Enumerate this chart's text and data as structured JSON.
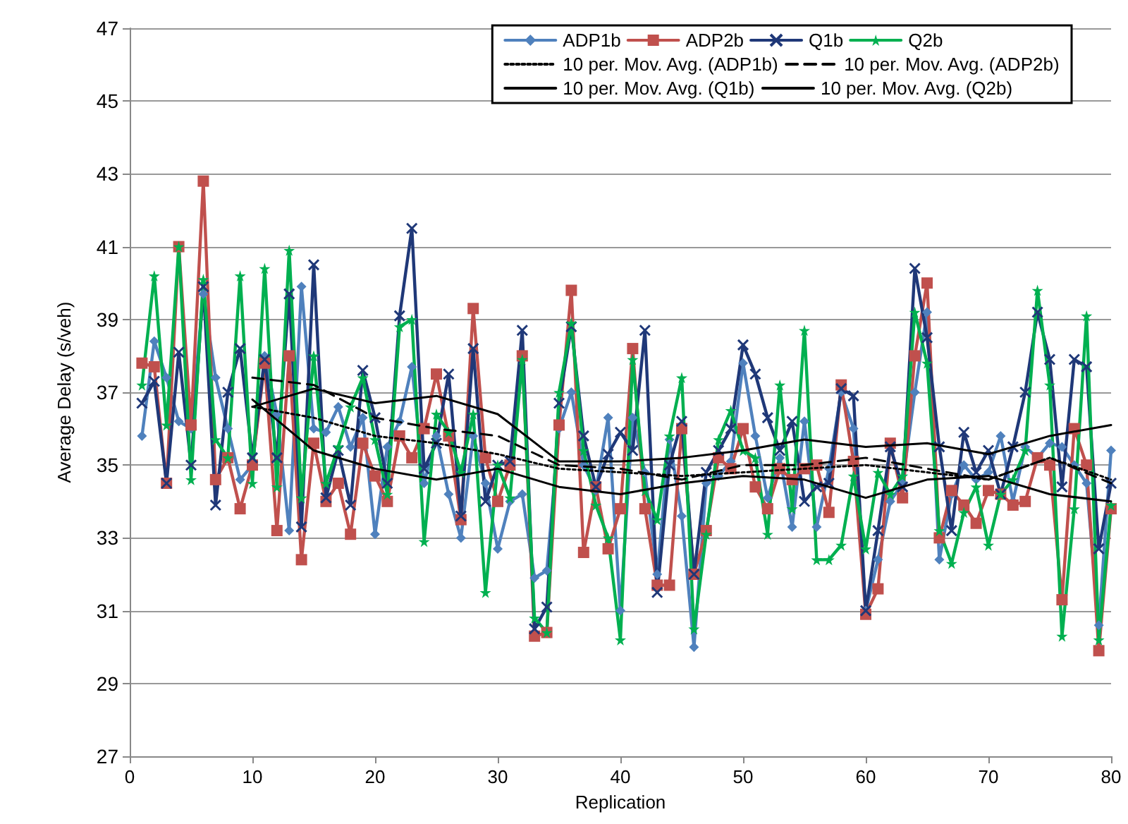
{
  "chart_data": {
    "type": "line",
    "xlabel": "Replication",
    "ylabel": "Average Delay (s/veh)",
    "xlim": [
      0,
      80
    ],
    "xticks": [
      0,
      10,
      20,
      30,
      40,
      50,
      60,
      70,
      80
    ],
    "ylim": [
      27,
      47
    ],
    "yticks": [
      27,
      29,
      31,
      33,
      35,
      37,
      39,
      41,
      43,
      45,
      47
    ],
    "grid": "y",
    "legend": "top right",
    "x": [
      1,
      2,
      3,
      4,
      5,
      6,
      7,
      8,
      9,
      10,
      11,
      12,
      13,
      14,
      15,
      16,
      17,
      18,
      19,
      20,
      21,
      22,
      23,
      24,
      25,
      26,
      27,
      28,
      29,
      30,
      31,
      32,
      33,
      34,
      35,
      36,
      37,
      38,
      39,
      40,
      41,
      42,
      43,
      44,
      45,
      46,
      47,
      48,
      49,
      50,
      51,
      52,
      53,
      54,
      55,
      56,
      57,
      58,
      59,
      60,
      61,
      62,
      63,
      64,
      65,
      66,
      67,
      68,
      69,
      70,
      71,
      72,
      73,
      74,
      75,
      76,
      77,
      78,
      79,
      80
    ],
    "series": [
      {
        "name": "ADP1b",
        "color": "#4f81bd",
        "marker": "diamond",
        "values": [
          35.8,
          38.4,
          37.4,
          36.2,
          36.0,
          39.7,
          37.4,
          36.0,
          34.6,
          35.0,
          38.0,
          36.4,
          33.2,
          39.9,
          36.0,
          35.9,
          36.6,
          35.5,
          36.3,
          33.1,
          35.5,
          36.2,
          37.7,
          34.5,
          35.8,
          34.2,
          33.0,
          35.8,
          34.5,
          32.7,
          34.0,
          34.2,
          31.9,
          32.1,
          36.0,
          37.0,
          35.0,
          34.3,
          36.3,
          31.0,
          36.3,
          34.8,
          32.0,
          35.7,
          33.6,
          30.0,
          34.5,
          34.7,
          35.1,
          37.8,
          35.8,
          34.1,
          35.2,
          33.3,
          36.2,
          33.3,
          34.9,
          37.0,
          36.0,
          31.0,
          32.4,
          34.0,
          34.5,
          37.0,
          39.2,
          32.4,
          34.2,
          35.0,
          34.6,
          34.8,
          35.8,
          34.0,
          35.5,
          35.2,
          35.6,
          35.5,
          35.0,
          34.5,
          30.6,
          35.4
        ]
      },
      {
        "name": "ADP2b",
        "color": "#c0504d",
        "marker": "square",
        "values": [
          37.8,
          37.7,
          34.5,
          41.0,
          36.1,
          42.8,
          34.6,
          35.2,
          33.8,
          35.0,
          37.8,
          33.2,
          38.0,
          32.4,
          35.6,
          34.0,
          34.5,
          33.1,
          35.6,
          34.7,
          34.0,
          35.8,
          35.2,
          36.0,
          37.5,
          35.8,
          33.5,
          39.3,
          35.2,
          34.0,
          35.0,
          38.0,
          30.3,
          30.4,
          36.1,
          39.8,
          32.6,
          34.4,
          32.7,
          33.8,
          38.2,
          33.8,
          31.7,
          31.7,
          36.0,
          32.0,
          33.2,
          35.2,
          34.9,
          36.0,
          34.4,
          33.8,
          34.9,
          34.6,
          34.9,
          35.0,
          33.7,
          37.2,
          35.1,
          30.9,
          31.6,
          35.6,
          34.1,
          38.0,
          40.0,
          33.0,
          34.3,
          33.9,
          33.4,
          34.3,
          34.2,
          33.9,
          34.0,
          35.2,
          35.0,
          31.3,
          36.0,
          35.0,
          29.9,
          33.8
        ]
      },
      {
        "name": "Q1b",
        "color": "#1f3878",
        "marker": "cross",
        "values": [
          36.7,
          37.3,
          34.5,
          38.1,
          35.0,
          39.9,
          33.9,
          37.0,
          38.2,
          35.2,
          37.9,
          35.2,
          39.7,
          33.3,
          40.5,
          34.1,
          35.4,
          33.9,
          37.6,
          36.3,
          34.5,
          39.1,
          41.5,
          34.9,
          35.6,
          37.5,
          33.6,
          38.2,
          34.0,
          35.0,
          35.1,
          38.7,
          30.5,
          31.1,
          36.7,
          38.8,
          35.8,
          34.4,
          35.3,
          35.9,
          35.4,
          38.7,
          31.5,
          35.0,
          36.2,
          32.0,
          34.8,
          35.4,
          36.0,
          38.3,
          37.5,
          36.3,
          35.4,
          36.2,
          34.0,
          34.4,
          34.5,
          37.1,
          36.9,
          31.0,
          33.2,
          35.5,
          34.4,
          40.4,
          38.5,
          35.5,
          33.2,
          35.9,
          34.8,
          35.4,
          34.2,
          35.5,
          37.0,
          39.2,
          37.9,
          34.4,
          37.9,
          37.7,
          32.7,
          34.5
        ]
      },
      {
        "name": "Q2b",
        "color": "#00b050",
        "marker": "star",
        "values": [
          37.2,
          40.2,
          36.1,
          41.0,
          34.6,
          40.1,
          35.7,
          35.2,
          40.2,
          34.5,
          40.4,
          34.4,
          40.9,
          34.1,
          38.0,
          34.5,
          35.5,
          36.6,
          37.4,
          35.7,
          34.2,
          38.8,
          39.0,
          32.9,
          36.4,
          35.9,
          34.8,
          36.4,
          31.5,
          35.0,
          34.1,
          37.9,
          30.8,
          30.4,
          37.0,
          38.9,
          35.4,
          33.9,
          33.0,
          30.2,
          37.9,
          34.3,
          33.5,
          35.8,
          37.4,
          30.5,
          33.1,
          35.7,
          36.5,
          35.4,
          35.2,
          33.1,
          37.2,
          33.8,
          38.7,
          32.4,
          32.4,
          32.8,
          34.7,
          32.7,
          34.8,
          34.2,
          34.7,
          39.2,
          37.8,
          33.2,
          32.3,
          33.7,
          34.4,
          32.8,
          34.2,
          34.6,
          35.4,
          39.8,
          37.2,
          30.3,
          33.8,
          39.1,
          30.2,
          33.9
        ]
      },
      {
        "name": "10 per. Mov. Avg. (ADP1b)",
        "color": "#000000",
        "marker": "none",
        "line_style": "dotted",
        "x": [
          10,
          15,
          20,
          25,
          30,
          35,
          40,
          45,
          50,
          55,
          60,
          65,
          70,
          75,
          80
        ],
        "values": [
          36.6,
          36.3,
          35.8,
          35.6,
          35.3,
          34.9,
          34.8,
          34.7,
          34.8,
          34.9,
          35.0,
          34.8,
          34.6,
          35.2,
          34.6
        ]
      },
      {
        "name": "10 per. Mov. Avg. (ADP2b)",
        "color": "#000000",
        "marker": "none",
        "line_style": "dashed",
        "x": [
          10,
          15,
          20,
          25,
          30,
          35,
          40,
          45,
          50,
          55,
          60,
          65,
          70,
          75,
          80
        ],
        "values": [
          37.4,
          37.2,
          36.3,
          36.0,
          35.8,
          35.0,
          34.9,
          34.6,
          35.0,
          35.0,
          35.2,
          34.9,
          34.6,
          35.2,
          34.5
        ]
      },
      {
        "name": "10 per. Mov. Avg. (Q1b)",
        "color": "#000000",
        "marker": "none",
        "line_style": "solid",
        "x": [
          10,
          15,
          20,
          25,
          30,
          35,
          40,
          45,
          50,
          55,
          60,
          65,
          70,
          75,
          80
        ],
        "values": [
          36.6,
          37.1,
          36.7,
          36.9,
          36.4,
          35.1,
          35.1,
          35.2,
          35.4,
          35.7,
          35.5,
          35.6,
          35.3,
          35.8,
          36.1
        ]
      },
      {
        "name": "10 per. Mov. Avg. (Q2b)",
        "color": "#000000",
        "marker": "none",
        "line_style": "solid",
        "x": [
          10,
          15,
          20,
          25,
          30,
          35,
          40,
          45,
          50,
          55,
          60,
          65,
          70,
          75,
          80
        ],
        "values": [
          36.8,
          35.4,
          34.9,
          34.6,
          34.9,
          34.4,
          34.2,
          34.5,
          34.7,
          34.6,
          34.1,
          34.6,
          34.7,
          34.2,
          34.0
        ]
      }
    ]
  }
}
